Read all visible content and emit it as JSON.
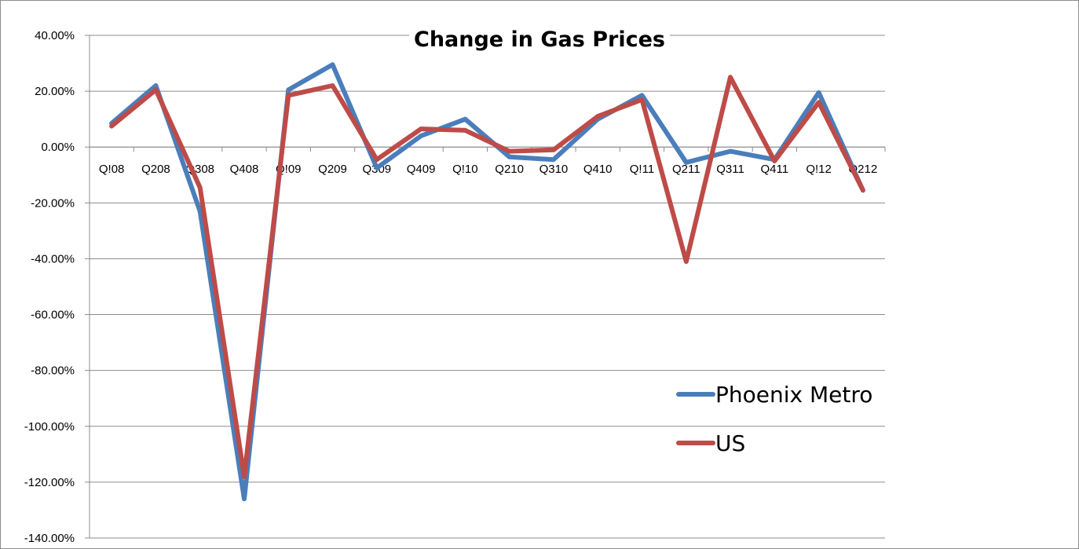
{
  "chart_data": {
    "type": "line",
    "title": "Change in Gas Prices",
    "xlabel": "",
    "ylabel": "",
    "categories": [
      "Q!08",
      "Q208",
      "Q308",
      "Q408",
      "Q!09",
      "Q209",
      "Q309",
      "Q409",
      "Q!10",
      "Q210",
      "Q310",
      "Q410",
      "Q!11",
      "Q211",
      "Q311",
      "Q411",
      "Q!12",
      "Q212"
    ],
    "series": [
      {
        "name": "Phoenix Metro",
        "color": "#4a7ebb",
        "values": [
          8.5,
          22.0,
          -23.0,
          -126.0,
          20.5,
          29.5,
          -7.5,
          4.0,
          10.0,
          -3.5,
          -4.5,
          10.0,
          18.5,
          -5.5,
          -1.5,
          -4.5,
          19.5,
          -15.5
        ]
      },
      {
        "name": "US",
        "color": "#be4b48",
        "values": [
          7.5,
          20.5,
          -14.5,
          -118.0,
          18.5,
          22.0,
          -4.5,
          6.5,
          6.0,
          -1.5,
          -1.0,
          11.0,
          17.0,
          -41.0,
          25.0,
          -5.0,
          16.0,
          -15.5
        ]
      }
    ],
    "ylim": [
      -140,
      40
    ],
    "yticks": [
      "40.00%",
      "20.00%",
      "0.00%",
      "-20.00%",
      "-40.00%",
      "-60.00%",
      "-80.00%",
      "-100.00%",
      "-120.00%",
      "-140.00%"
    ],
    "ytick_values": [
      40,
      20,
      0,
      -20,
      -40,
      -60,
      -80,
      -100,
      -120,
      -140
    ],
    "grid": true,
    "legend_position": "right"
  }
}
